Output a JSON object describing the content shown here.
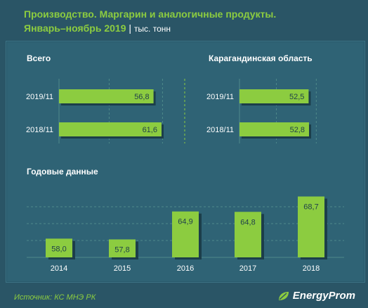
{
  "header": {
    "title_line1": "Производство. Маргарин и аналогичные продукты.",
    "title_line2": "Январь–ноябрь 2019",
    "separator": "|",
    "unit": "тыс. тонн"
  },
  "footer": {
    "source": "Источник: КС МНЭ РК",
    "brand": "EnergyProm",
    "brand_icon": "leaf-icon"
  },
  "colors": {
    "bar": "#8ccc40",
    "bar_shadow": "#1c3e4a",
    "text": "#ffffff",
    "grid": "#4f8a8a",
    "divider": "#8ccc40"
  },
  "chart_data": [
    {
      "type": "bar",
      "orientation": "horizontal",
      "title": "Всего",
      "categories": [
        "2019/11",
        "2018/11"
      ],
      "values": [
        56.8,
        61.6
      ],
      "value_labels": [
        "56,8",
        "61,6"
      ],
      "grid": true
    },
    {
      "type": "bar",
      "orientation": "horizontal",
      "title": "Карагандинская  область",
      "categories": [
        "2019/11",
        "2018/11"
      ],
      "values": [
        52.5,
        52.8
      ],
      "value_labels": [
        "52,5",
        "52,8"
      ],
      "grid": true
    },
    {
      "type": "bar",
      "orientation": "vertical",
      "title": "Годовые данные",
      "categories": [
        "2014",
        "2015",
        "2016",
        "2017",
        "2018"
      ],
      "values": [
        58.0,
        57.8,
        64.9,
        64.8,
        68.7
      ],
      "value_labels": [
        "58,0",
        "57,8",
        "64,9",
        "64,8",
        "68,7"
      ],
      "grid": true
    }
  ]
}
